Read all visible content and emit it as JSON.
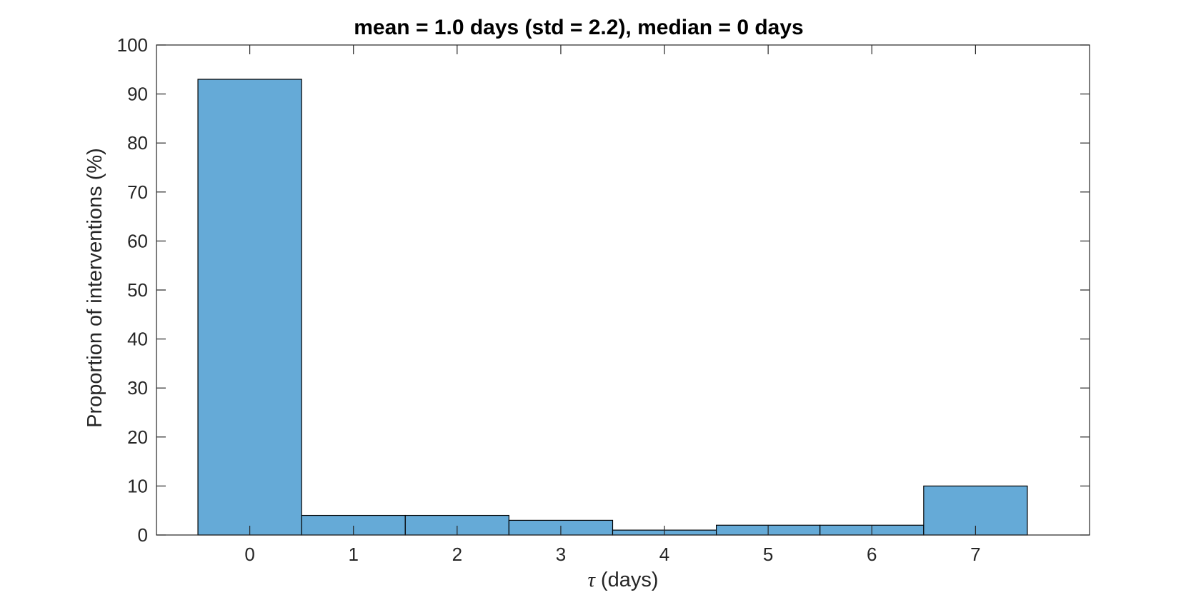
{
  "chart_data": {
    "type": "bar",
    "title": "mean = 1.0 days (std = 2.2), median = 0 days",
    "xlabel_symbol": "τ",
    "xlabel": " (days)",
    "ylabel": "Proportion of interventions (%)",
    "categories": [
      "0",
      "1",
      "2",
      "3",
      "4",
      "5",
      "6",
      "7"
    ],
    "bins": [
      {
        "from": -0.5,
        "to": 0.5,
        "value": 93
      },
      {
        "from": 0.5,
        "to": 1.5,
        "value": 4
      },
      {
        "from": 1.5,
        "to": 2.5,
        "value": 4
      },
      {
        "from": 2.5,
        "to": 3.5,
        "value": 3
      },
      {
        "from": 3.5,
        "to": 4.5,
        "value": 1
      },
      {
        "from": 4.5,
        "to": 5.5,
        "value": 2
      },
      {
        "from": 5.5,
        "to": 6.5,
        "value": 2
      },
      {
        "from": 6.5,
        "to": 7.5,
        "value": 10
      }
    ],
    "xlim": [
      -0.9,
      8.1
    ],
    "ylim": [
      0,
      100
    ],
    "xticks": [
      0,
      1,
      2,
      3,
      4,
      5,
      6,
      7
    ],
    "yticks": [
      0,
      10,
      20,
      30,
      40,
      50,
      60,
      70,
      80,
      90,
      100
    ],
    "grid": false,
    "legend": "none",
    "colors": {
      "bar_fill": "#65aad7",
      "bar_edge": "#000000",
      "axis": "#262626"
    }
  }
}
